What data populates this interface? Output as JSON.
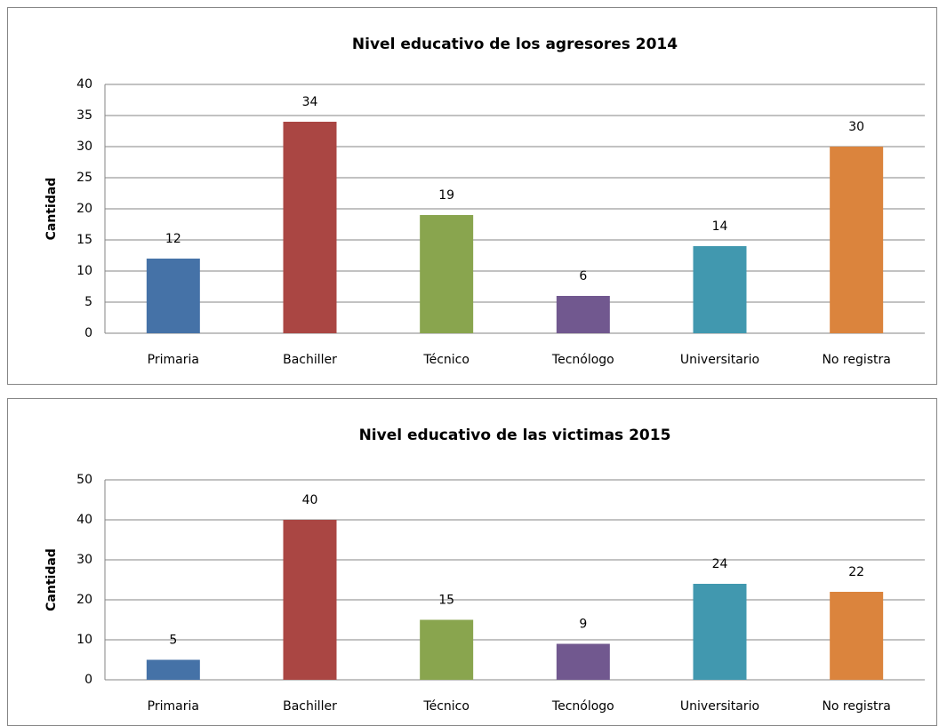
{
  "chart_data": [
    {
      "type": "bar",
      "title": "Nivel educativo de los agresores 2014",
      "y_label": "Cantidad",
      "categories": [
        "Primaria",
        "Bachiller",
        "Técnico",
        "Tecnólogo",
        "Universitario",
        "No registra"
      ],
      "values": [
        12,
        34,
        19,
        6,
        14,
        30
      ],
      "colors": [
        "#4572a7",
        "#aa4643",
        "#89a54e",
        "#71588f",
        "#4198af",
        "#db843d"
      ],
      "ylim": [
        0,
        40
      ],
      "yticks": [
        0,
        5,
        10,
        15,
        20,
        25,
        30,
        35,
        40
      ],
      "grid": true
    },
    {
      "type": "bar",
      "title": "Nivel educativo de las victimas 2015",
      "y_label": "Cantidad",
      "categories": [
        "Primaria",
        "Bachiller",
        "Técnico",
        "Tecnólogo",
        "Universitario",
        "No registra"
      ],
      "values": [
        5,
        40,
        15,
        9,
        24,
        22
      ],
      "colors": [
        "#4572a7",
        "#aa4643",
        "#89a54e",
        "#71588f",
        "#4198af",
        "#db843d"
      ],
      "ylim": [
        0,
        50
      ],
      "yticks": [
        0,
        10,
        20,
        30,
        40,
        50
      ],
      "grid": true
    }
  ]
}
